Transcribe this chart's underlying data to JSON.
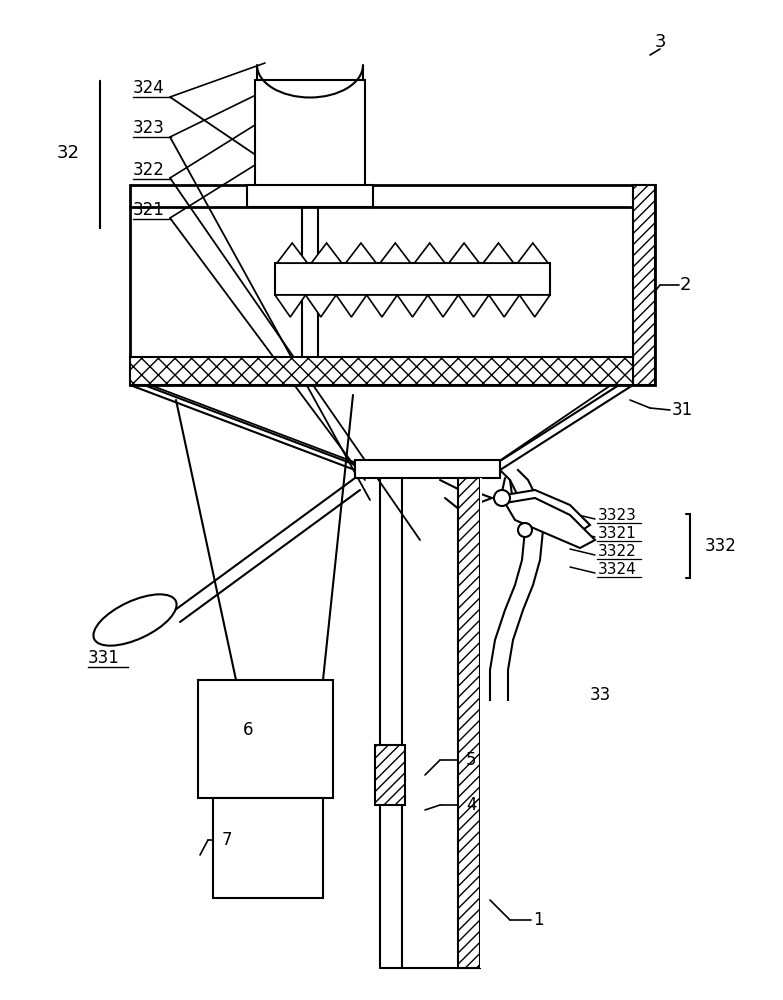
{
  "bg_color": "#ffffff",
  "line_color": "#000000",
  "figsize": [
    7.83,
    10.0
  ],
  "dpi": 100
}
